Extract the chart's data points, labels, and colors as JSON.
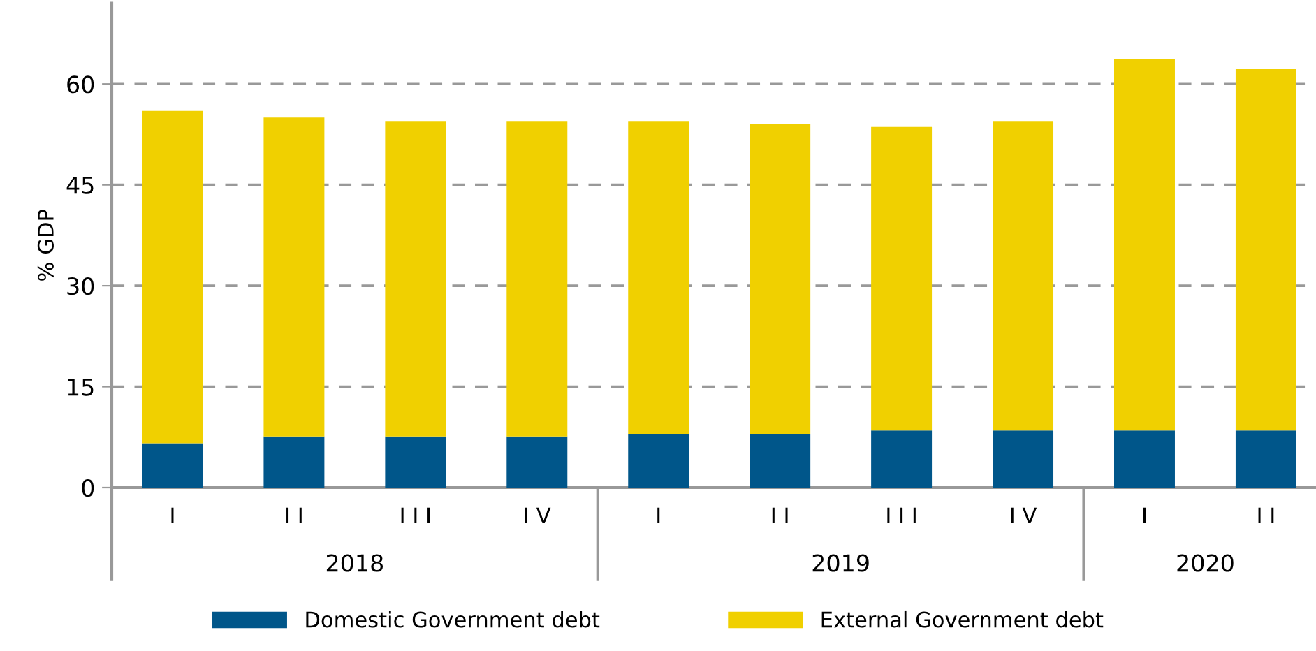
{
  "chart_data": {
    "type": "bar",
    "stacked": true,
    "ylabel": "% GDP",
    "categories": [
      "I",
      "I I",
      "I I I",
      "I V",
      "I",
      "I I",
      "I I I",
      "I V",
      "I",
      "I I"
    ],
    "series": [
      {
        "name": "Domestic Government debt",
        "color": "#00568a",
        "values": [
          6.6,
          7.6,
          7.6,
          7.6,
          8.0,
          8.0,
          8.5,
          8.5,
          8.5,
          8.5
        ]
      },
      {
        "name": "External Government debt",
        "color": "#f0d000",
        "values": [
          49.4,
          47.4,
          46.9,
          46.9,
          46.5,
          46.0,
          45.1,
          46.0,
          55.2,
          53.7
        ]
      }
    ],
    "ylim": [
      0,
      72
    ],
    "yticks": [
      0,
      15,
      30,
      45,
      60
    ],
    "grid": "y",
    "legend": "bottom",
    "annotations": [
      "2018",
      "2019",
      "2020"
    ]
  }
}
